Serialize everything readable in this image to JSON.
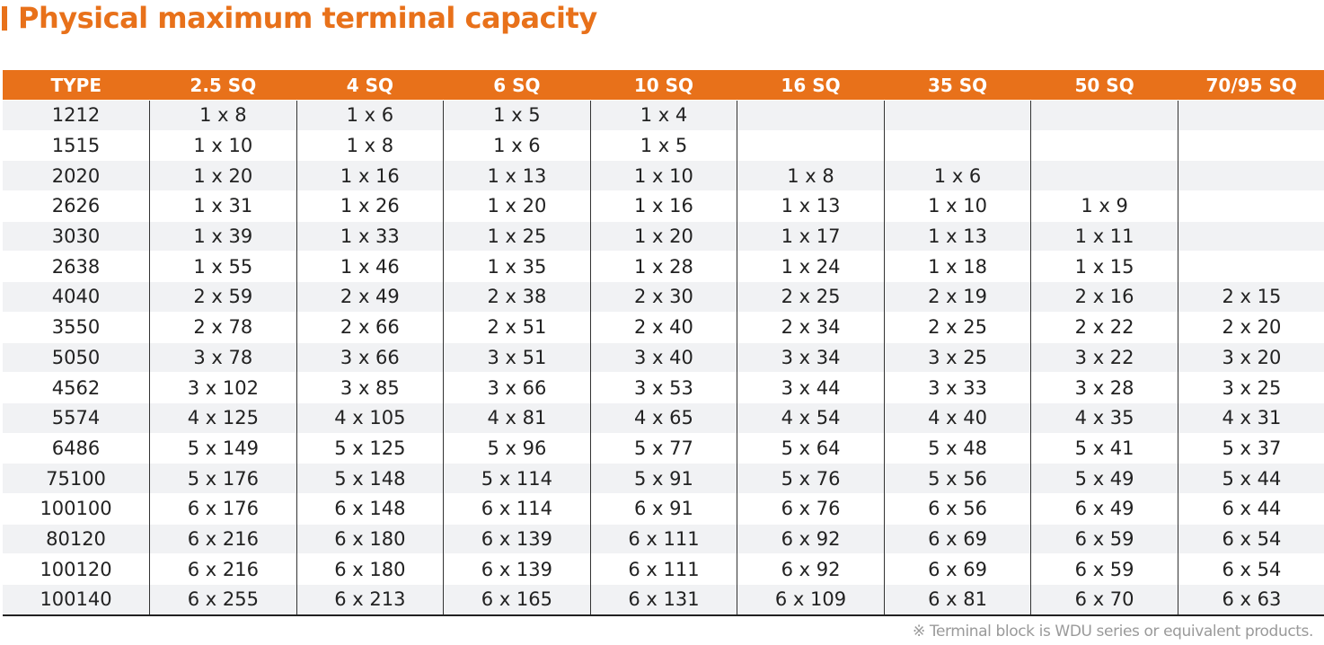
{
  "title": "Physical maximum terminal capacity",
  "accent_color": "#e8711a",
  "table": {
    "headers": [
      "TYPE",
      "2.5 SQ",
      "4 SQ",
      "6 SQ",
      "10 SQ",
      "16 SQ",
      "35 SQ",
      "50 SQ",
      "70/95 SQ"
    ],
    "rows": [
      [
        "1212",
        "1 x 8",
        "1 x 6",
        "1 x 5",
        "1 x 4",
        "",
        "",
        "",
        ""
      ],
      [
        "1515",
        "1 x 10",
        "1 x 8",
        "1 x 6",
        "1 x 5",
        "",
        "",
        "",
        ""
      ],
      [
        "2020",
        "1 x 20",
        "1 x 16",
        "1 x 13",
        "1 x 10",
        "1 x 8",
        "1 x 6",
        "",
        ""
      ],
      [
        "2626",
        "1 x 31",
        "1 x 26",
        "1 x 20",
        "1 x 16",
        "1 x 13",
        "1 x 10",
        "1 x 9",
        ""
      ],
      [
        "3030",
        "1 x 39",
        "1 x 33",
        "1 x 25",
        "1 x 20",
        "1 x 17",
        "1 x 13",
        "1 x 11",
        ""
      ],
      [
        "2638",
        "1 x 55",
        "1 x 46",
        "1 x 35",
        "1 x 28",
        "1 x 24",
        "1 x 18",
        "1 x 15",
        ""
      ],
      [
        "4040",
        "2 x 59",
        "2 x 49",
        "2 x 38",
        "2 x 30",
        "2 x 25",
        "2 x 19",
        "2 x 16",
        "2 x 15"
      ],
      [
        "3550",
        "2 x 78",
        "2 x 66",
        "2 x 51",
        "2 x 40",
        "2 x 34",
        "2 x 25",
        "2 x 22",
        "2 x 20"
      ],
      [
        "5050",
        "3 x 78",
        "3 x 66",
        "3 x 51",
        "3 x 40",
        "3 x 34",
        "3 x 25",
        "3 x 22",
        "3 x 20"
      ],
      [
        "4562",
        "3 x 102",
        "3 x 85",
        "3 x 66",
        "3 x 53",
        "3 x 44",
        "3 x 33",
        "3 x 28",
        "3 x 25"
      ],
      [
        "5574",
        "4 x 125",
        "4 x 105",
        "4 x 81",
        "4 x 65",
        "4 x 54",
        "4 x 40",
        "4 x 35",
        "4 x 31"
      ],
      [
        "6486",
        "5 x 149",
        "5 x 125",
        "5 x 96",
        "5 x 77",
        "5 x 64",
        "5 x 48",
        "5 x 41",
        "5 x 37"
      ],
      [
        "75100",
        "5 x 176",
        "5 x 148",
        "5 x 114",
        "5 x 91",
        "5 x 76",
        "5 x 56",
        "5 x 49",
        "5 x 44"
      ],
      [
        "100100",
        "6 x 176",
        "6 x 148",
        "6 x 114",
        "6 x 91",
        "6 x 76",
        "6 x 56",
        "6 x 49",
        "6 x 44"
      ],
      [
        "80120",
        "6 x 216",
        "6 x 180",
        "6 x 139",
        "6 x 111",
        "6 x 92",
        "6 x 69",
        "6 x 59",
        "6 x 54"
      ],
      [
        "100120",
        "6 x 216",
        "6 x 180",
        "6 x 139",
        "6 x 111",
        "6 x 92",
        "6 x 69",
        "6 x 59",
        "6 x 54"
      ],
      [
        "100140",
        "6 x 255",
        "6 x 213",
        "6 x 165",
        "6 x 131",
        "6 x 109",
        "6 x 81",
        "6 x 70",
        "6 x 63"
      ]
    ]
  },
  "footnote": "※ Terminal block is WDU series or equivalent products."
}
